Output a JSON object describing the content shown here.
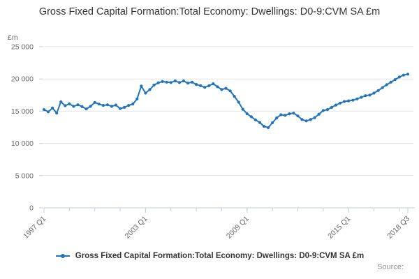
{
  "title": "Gross Fixed Capital Formation:Total Economy: Dwellings: D0-9:CVM SA £m",
  "source_label": "Source:",
  "legend": {
    "label": "Gross Fixed Capital Formation:Total Economy: Dwellings: D0-9:CVM SA £m"
  },
  "colors": {
    "line": "#2074bc",
    "grid": "#e3e3e3",
    "axis": "#c2cfe0",
    "tick_text": "#666666"
  },
  "chart_data": {
    "type": "line",
    "title": "Gross Fixed Capital Formation:Total Economy: Dwellings: D0-9:CVM SA £m",
    "xlabel": "",
    "ylabel": "£m",
    "ylim": [
      0,
      25000
    ],
    "grid": true,
    "legend_position": "bottom",
    "marker": "dot",
    "frequency": "quarterly",
    "x_start": "1997 Q1",
    "x_end": "2018 Q3",
    "y_ticks": [
      0,
      5000,
      10000,
      15000,
      20000,
      25000
    ],
    "y_tick_labels": [
      "0",
      "5 000",
      "10 000",
      "15 000",
      "20 000",
      "25 000"
    ],
    "x_major_labels": [
      "1997 Q1",
      "2003 Q1",
      "2009 Q1",
      "2015 Q1",
      "2018 Q3"
    ],
    "x_major_indices": [
      0,
      24,
      48,
      72,
      86
    ],
    "x_minor_step": 6,
    "series": [
      {
        "name": "Gross Fixed Capital Formation:Total Economy: Dwellings: D0-9:CVM SA £m",
        "values": [
          15250,
          14900,
          15500,
          14700,
          16450,
          15850,
          16150,
          15750,
          16000,
          15700,
          15350,
          15750,
          16350,
          16100,
          15900,
          16000,
          15750,
          15950,
          15400,
          15600,
          15900,
          16100,
          16900,
          18900,
          17800,
          18350,
          19050,
          19400,
          19600,
          19500,
          19450,
          19700,
          19450,
          19700,
          19350,
          19500,
          19150,
          18950,
          18700,
          18950,
          19250,
          18800,
          18350,
          18550,
          18150,
          17300,
          16400,
          15300,
          14600,
          14150,
          13650,
          13250,
          12650,
          12450,
          13200,
          13950,
          14450,
          14350,
          14600,
          14700,
          14250,
          13700,
          13500,
          13700,
          14000,
          14550,
          15100,
          15250,
          15600,
          15950,
          16250,
          16500,
          16600,
          16700,
          16900,
          17150,
          17400,
          17500,
          17800,
          18200,
          18650,
          19100,
          19500,
          19900,
          20300,
          20600,
          20750
        ]
      }
    ]
  }
}
